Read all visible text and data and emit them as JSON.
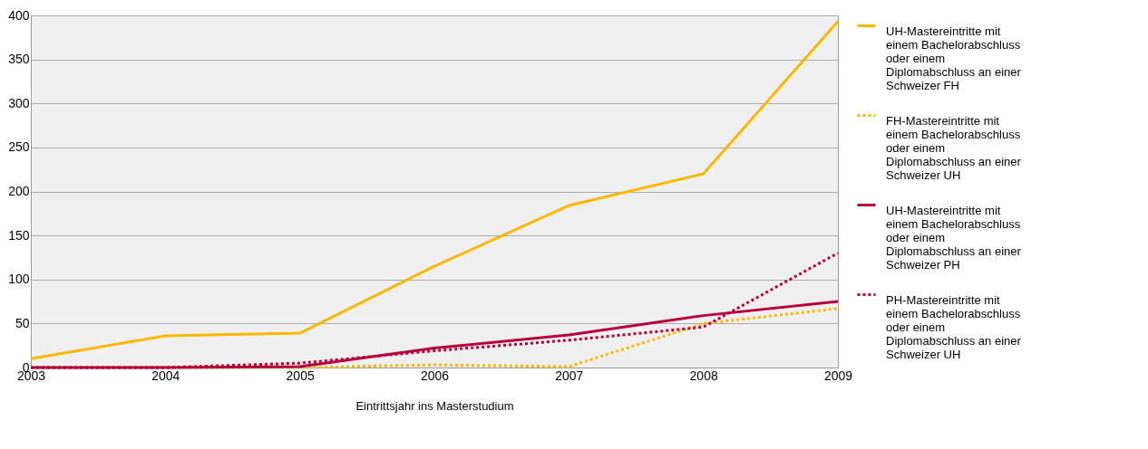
{
  "chart_data": {
    "type": "line",
    "xlabel": "Eintrittsjahr ins Masterstudium",
    "x": [
      2003,
      2004,
      2005,
      2006,
      2007,
      2008,
      2009
    ],
    "xlim": [
      2003,
      2009
    ],
    "xticks": [
      2003,
      2004,
      2005,
      2006,
      2007,
      2008,
      2009
    ],
    "ylim": [
      0,
      400
    ],
    "yticks": [
      0,
      50,
      100,
      150,
      200,
      250,
      300,
      350,
      400
    ],
    "grid": "y",
    "legend": "right",
    "marker": "none",
    "series": [
      {
        "name": "UH-Mastereintritte mit einem Bachelorabschluss oder einem Diplomabschluss an einer Schweizer FH",
        "color": "#f9b800",
        "line_style": "solid",
        "values": [
          10,
          36,
          39,
          115,
          184,
          220,
          393
        ]
      },
      {
        "name": "FH-Mastereintritte mit einem Bachelorabschluss oder einem Diplomabschluss an einer Schweizer UH",
        "color": "#f9b800",
        "line_style": "dotted",
        "values": [
          0,
          0,
          0,
          3,
          1,
          50,
          67
        ]
      },
      {
        "name": "UH-Mastereintritte mit einem Bachelorabschluss oder einem Diplomabschluss an einer Schweizer PH",
        "color": "#b5003c",
        "line_style": "solid",
        "values": [
          0,
          0,
          1,
          22,
          37,
          59,
          75
        ]
      },
      {
        "name": "PH-Mastereintritte mit einem Bachelorabschluss oder einem Diplomabschluss an einer Schweizer UH",
        "color": "#b5003c",
        "line_style": "dotted",
        "values": [
          0,
          0,
          5,
          19,
          31,
          46,
          130
        ]
      }
    ]
  }
}
